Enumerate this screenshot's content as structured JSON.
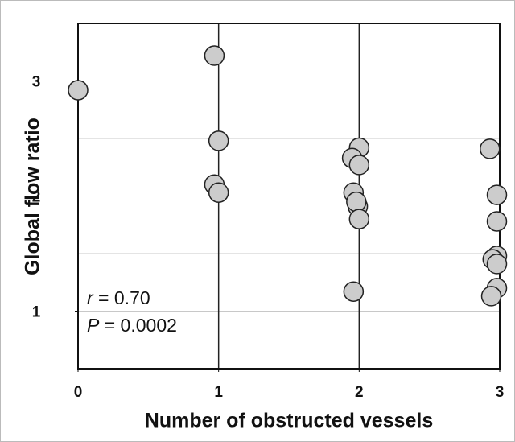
{
  "chart_data": {
    "type": "scatter",
    "x_label": "Number of obstructed vessels",
    "y_label": "Global  flow  ratio",
    "xlim": [
      0,
      3
    ],
    "ylim": [
      0.5,
      3.5
    ],
    "xticks": [
      0,
      1,
      2,
      3
    ],
    "yticks": [
      1,
      2,
      3
    ],
    "ygrid": [
      1,
      1.5,
      2,
      2.5,
      3
    ],
    "xgrid": [
      1,
      2
    ],
    "color": "#cccccc",
    "x": [
      0,
      0.97,
      1.0,
      0.97,
      1.0,
      2.0,
      1.95,
      2.0,
      1.96,
      1.99,
      1.98,
      2.0,
      1.96,
      2.93,
      2.98,
      2.98,
      2.98,
      2.95,
      2.98,
      2.98,
      2.94
    ],
    "values": [
      2.92,
      3.22,
      2.48,
      2.1,
      2.03,
      2.42,
      2.33,
      2.27,
      2.03,
      1.91,
      1.95,
      1.8,
      1.17,
      2.41,
      2.01,
      1.78,
      1.48,
      1.45,
      1.41,
      1.2,
      1.13
    ],
    "annotations": [
      {
        "symbol": "r",
        "text": " = 0.70"
      },
      {
        "symbol": "P",
        "text": " = 0.0002"
      }
    ]
  }
}
